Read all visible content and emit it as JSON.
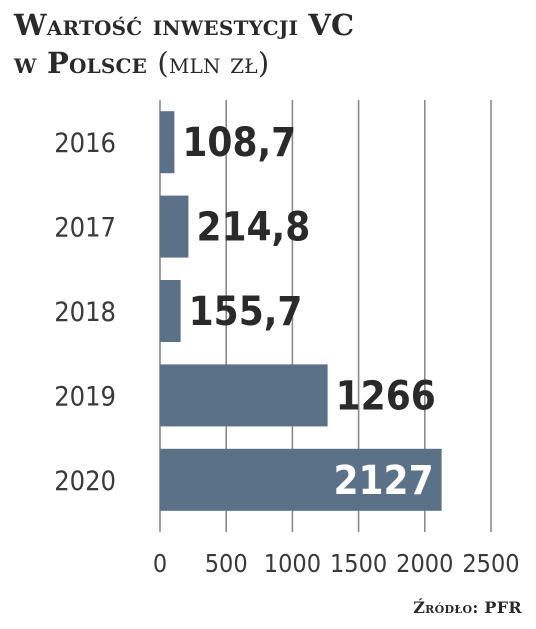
{
  "header": {
    "title_line1": "Wartość inwestycji VC",
    "title_line2": "w Polsce",
    "unit": "(mln zł)"
  },
  "source": "Źródło: PFR",
  "colors": {
    "bar": "#5b7188",
    "grid": "#8a8a8a",
    "text": "#2a2a2a",
    "value_inside": "#ffffff"
  },
  "chart_data": {
    "type": "bar",
    "orientation": "horizontal",
    "categories": [
      "2016",
      "2017",
      "2018",
      "2019",
      "2020"
    ],
    "values": [
      108.7,
      214.8,
      155.7,
      1266,
      2127
    ],
    "value_labels": [
      "108,7",
      "214,8",
      "155,7",
      "1266",
      "2127"
    ],
    "xlim": [
      0,
      2500
    ],
    "xticks": [
      0,
      500,
      1000,
      1500,
      2000,
      2500
    ],
    "grid": "vertical",
    "title": "Wartość inwestycji VC w Polsce (mln zł)"
  }
}
